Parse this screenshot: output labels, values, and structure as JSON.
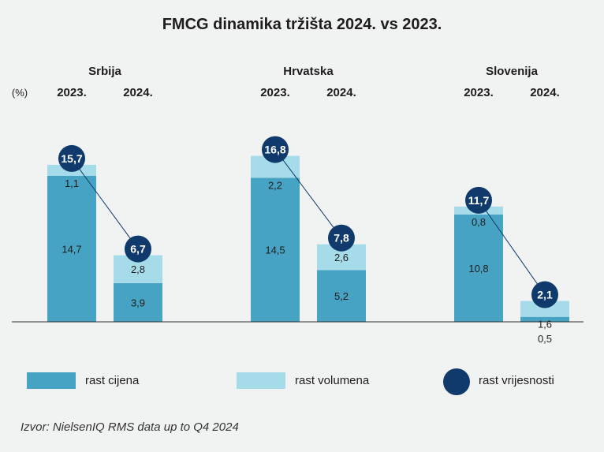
{
  "chart_data": {
    "type": "bar",
    "stacked": true,
    "title": "FMCG dinamika tržišta 2024. vs 2023.",
    "unit_label": "(%)",
    "groups": [
      {
        "name": "Srbija",
        "years": [
          {
            "year": "2023.",
            "price": 14.7,
            "volume": 1.1,
            "value": 15.7,
            "price_label": "14,7",
            "volume_label": "1,1",
            "value_label": "15,7"
          },
          {
            "year": "2024.",
            "price": 3.9,
            "volume": 2.8,
            "value": 6.7,
            "price_label": "3,9",
            "volume_label": "2,8",
            "value_label": "6,7"
          }
        ]
      },
      {
        "name": "Hrvatska",
        "years": [
          {
            "year": "2023.",
            "price": 14.5,
            "volume": 2.2,
            "value": 16.8,
            "price_label": "14,5",
            "volume_label": "2,2",
            "value_label": "16,8"
          },
          {
            "year": "2024.",
            "price": 5.2,
            "volume": 2.6,
            "value": 7.8,
            "price_label": "5,2",
            "volume_label": "2,6",
            "value_label": "7,8"
          }
        ]
      },
      {
        "name": "Slovenija",
        "years": [
          {
            "year": "2023.",
            "price": 10.8,
            "volume": 0.8,
            "value": 11.7,
            "price_label": "10,8",
            "volume_label": "0,8",
            "value_label": "11,7"
          },
          {
            "year": "2024.",
            "price": 0.5,
            "volume": 1.6,
            "value": 2.1,
            "price_label": "0,5",
            "volume_label": "1,6",
            "value_label": "2,1"
          }
        ]
      }
    ],
    "legend": [
      {
        "key": "price",
        "label": "rast cijena"
      },
      {
        "key": "volume",
        "label": "rast volumena"
      },
      {
        "key": "value",
        "label": "rast vrijesnosti"
      }
    ],
    "colors": {
      "price": "#47a3c4",
      "volume": "#a6dcea",
      "value": "#0f3a6b"
    }
  },
  "source": "Izvor: NielsenIQ RMS data up to Q4 2024"
}
